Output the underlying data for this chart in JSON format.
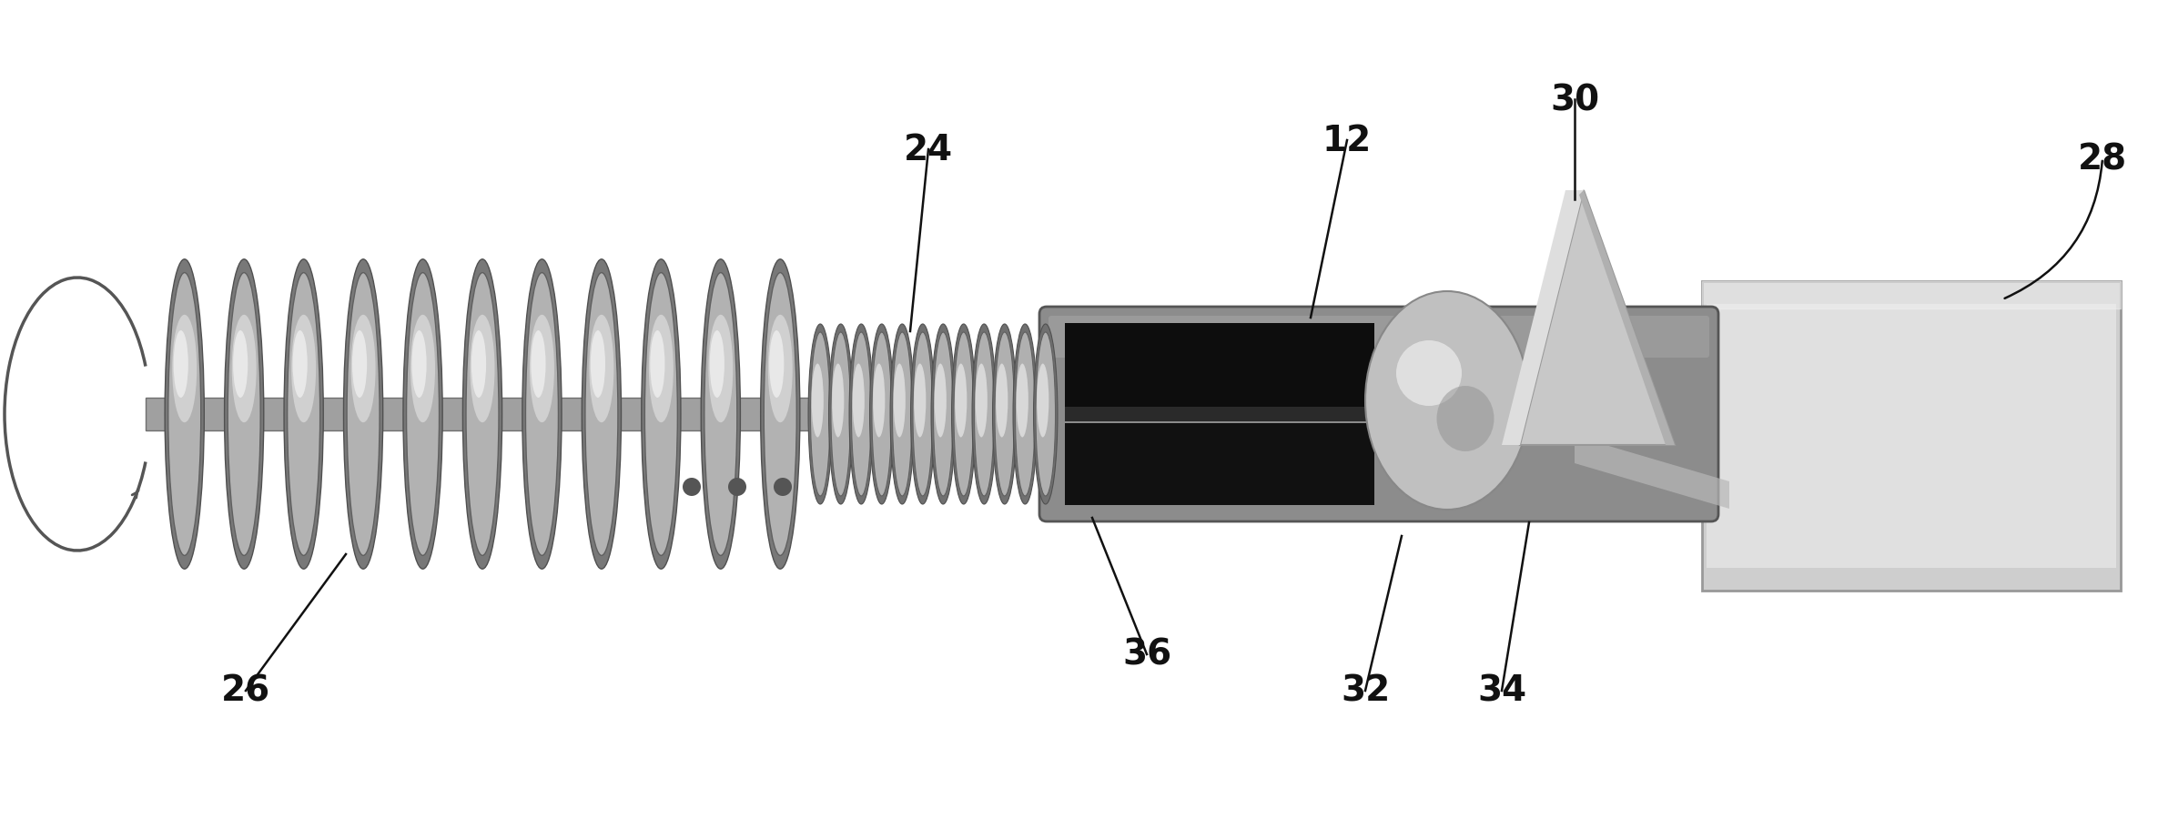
{
  "bg_color": "#ffffff",
  "fig_width": 23.71,
  "fig_height": 9.12,
  "label_fontsize": 28,
  "coil_main_color": "#b0b0b0",
  "coil_shadow": "#808080",
  "coil_highlight": "#d8d8d8",
  "shaft_color": "#a0a0a0",
  "body_outer_color": "#909090",
  "body_inner_dark": "#1a1a1a",
  "ball_color": "#c0c0c0",
  "prism_color": "#c8c8c8",
  "sheath_color": "#d0d0d0",
  "line_color": "#111111",
  "dot_color": "#333333",
  "arrow_color": "#555555"
}
